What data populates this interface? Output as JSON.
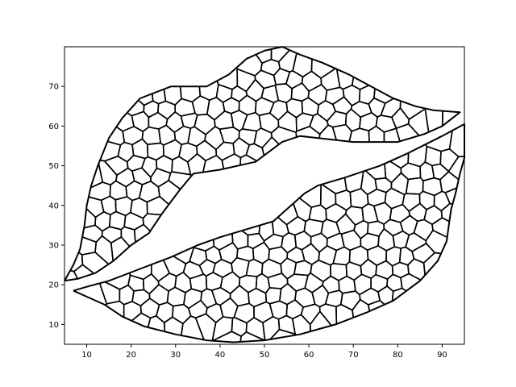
{
  "chart_data": {
    "type": "line",
    "title": "",
    "xlabel": "",
    "ylabel": "",
    "xlim": [
      5,
      95
    ],
    "ylim": [
      5,
      80
    ],
    "xticks": [
      10,
      20,
      30,
      40,
      50,
      60,
      70,
      80,
      90
    ],
    "yticks": [
      10,
      20,
      30,
      40,
      50,
      60,
      70
    ],
    "grid": false,
    "legend": "none",
    "series": [
      {
        "values": [
          [
            5,
            21
          ],
          [
            7,
            25
          ],
          [
            8.5,
            29
          ],
          [
            9.5,
            35
          ],
          [
            10,
            40
          ],
          [
            11,
            45
          ],
          [
            12.5,
            50
          ],
          [
            15,
            57
          ],
          [
            18,
            62
          ],
          [
            22,
            67
          ],
          [
            29,
            70
          ],
          [
            37,
            70
          ],
          [
            42,
            73
          ],
          [
            46,
            77
          ],
          [
            50,
            79
          ],
          [
            54,
            80
          ],
          [
            58,
            78
          ],
          [
            63,
            76
          ],
          [
            69,
            73
          ],
          [
            74,
            70
          ],
          [
            79,
            67
          ],
          [
            84,
            65
          ],
          [
            88,
            64
          ],
          [
            94,
            63.5
          ],
          [
            90,
            60
          ],
          [
            86,
            58
          ],
          [
            80,
            56
          ],
          [
            70,
            56
          ],
          [
            58,
            57.5
          ],
          [
            54,
            56
          ],
          [
            48,
            51
          ],
          [
            40,
            49
          ],
          [
            34,
            48
          ],
          [
            31,
            44
          ],
          [
            27,
            38
          ],
          [
            24,
            33
          ],
          [
            20,
            30
          ],
          [
            16,
            26
          ],
          [
            12,
            23
          ],
          [
            8,
            21.5
          ],
          [
            5,
            21
          ]
        ]
      },
      {
        "values": [
          [
            7,
            18.5
          ],
          [
            10,
            17
          ],
          [
            14,
            15
          ],
          [
            18,
            12
          ],
          [
            23,
            9.5
          ],
          [
            30,
            7.5
          ],
          [
            37,
            6
          ],
          [
            43,
            5.5
          ],
          [
            50,
            6
          ],
          [
            58,
            7.5
          ],
          [
            66,
            10
          ],
          [
            73,
            13
          ],
          [
            79,
            16
          ],
          [
            85,
            21
          ],
          [
            89,
            26
          ],
          [
            91,
            31
          ],
          [
            91.5,
            35
          ],
          [
            92,
            39
          ],
          [
            93,
            43
          ],
          [
            94,
            48
          ],
          [
            95,
            52
          ],
          [
            95,
            60.5
          ],
          [
            90,
            57.5
          ],
          [
            82,
            53
          ],
          [
            76,
            50
          ],
          [
            68,
            47
          ],
          [
            62,
            45
          ],
          [
            59,
            43
          ],
          [
            56,
            40
          ],
          [
            52,
            36
          ],
          [
            46,
            34
          ],
          [
            40,
            32
          ],
          [
            35,
            30
          ],
          [
            29,
            27
          ],
          [
            22,
            24
          ],
          [
            15,
            21
          ],
          [
            10,
            19.5
          ],
          [
            7,
            18.5
          ]
        ]
      }
    ]
  }
}
